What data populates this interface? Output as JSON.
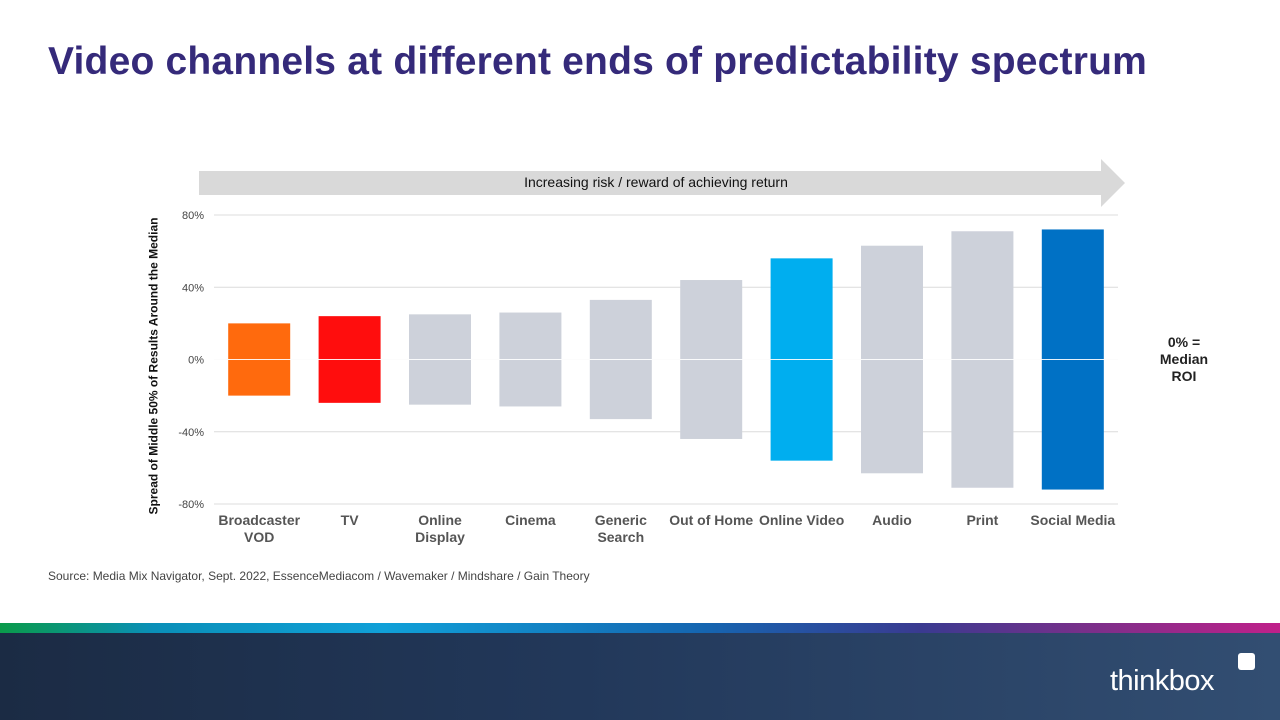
{
  "title": "Video channels at different ends of predictability spectrum",
  "arrow_label": "Increasing risk / reward of achieving return",
  "annotation": {
    "line1": "0% =",
    "line2": "Median",
    "line3": "ROI"
  },
  "source": "Source: Media Mix Navigator,  Sept. 2022,  EssenceMediacom  / Wavemaker / Mindshare / Gain Theory",
  "logo_text": "thinkbox",
  "chart_data": {
    "type": "bar",
    "subtype": "floating-range",
    "ylabel": "Spread of Middle 50% of Results Around the Median",
    "ylim": [
      -80,
      80
    ],
    "yticks": [
      80,
      40,
      0,
      -40,
      -80
    ],
    "ytick_labels": [
      "80%",
      "40%",
      "0%",
      "-40%",
      "-80%"
    ],
    "grid": true,
    "categories": [
      [
        "Broadcaster",
        "VOD"
      ],
      [
        "TV"
      ],
      [
        "Online",
        "Display"
      ],
      [
        "Cinema"
      ],
      [
        "Generic",
        "Search"
      ],
      [
        "Out of Home"
      ],
      [
        "Online Video"
      ],
      [
        "Audio"
      ],
      [
        "Print"
      ],
      [
        "Social Media"
      ]
    ],
    "high": [
      20,
      24,
      25,
      26,
      33,
      44,
      56,
      63,
      71,
      72
    ],
    "low": [
      -20,
      -24,
      -25,
      -26,
      -33,
      -44,
      -56,
      -63,
      -71,
      -72
    ],
    "colors": [
      "#ff6a0d",
      "#ff0d0d",
      "#cdd1da",
      "#cdd1da",
      "#cdd1da",
      "#cdd1da",
      "#00aeef",
      "#cdd1da",
      "#cdd1da",
      "#0071c5"
    ]
  }
}
